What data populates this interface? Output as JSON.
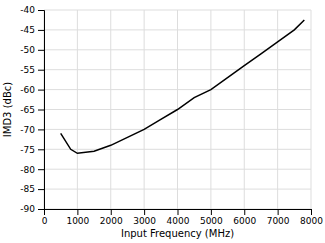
{
  "chart_data": {
    "type": "line",
    "x": [
      500,
      800,
      1000,
      1500,
      2000,
      2500,
      3000,
      3500,
      4000,
      4500,
      5000,
      5500,
      6000,
      6500,
      7000,
      7500,
      7800
    ],
    "values": [
      -71,
      -75,
      -76,
      -75.5,
      -74,
      -72,
      -70,
      -67.5,
      -65,
      -62,
      -60,
      -57,
      -54,
      -51,
      -48,
      -45,
      -42.5
    ],
    "xlim": [
      0,
      8000
    ],
    "ylim": [
      -90,
      -40
    ],
    "xticks": [
      0,
      1000,
      2000,
      3000,
      4000,
      5000,
      6000,
      7000,
      8000
    ],
    "yticks": [
      -90,
      -85,
      -80,
      -75,
      -70,
      -65,
      -60,
      -55,
      -50,
      -45,
      -40
    ],
    "xlabel": "Input Frequency (MHz)",
    "ylabel": "IMD3 (dBc)",
    "grid": true,
    "color": "#000000",
    "line_style": "solid"
  }
}
